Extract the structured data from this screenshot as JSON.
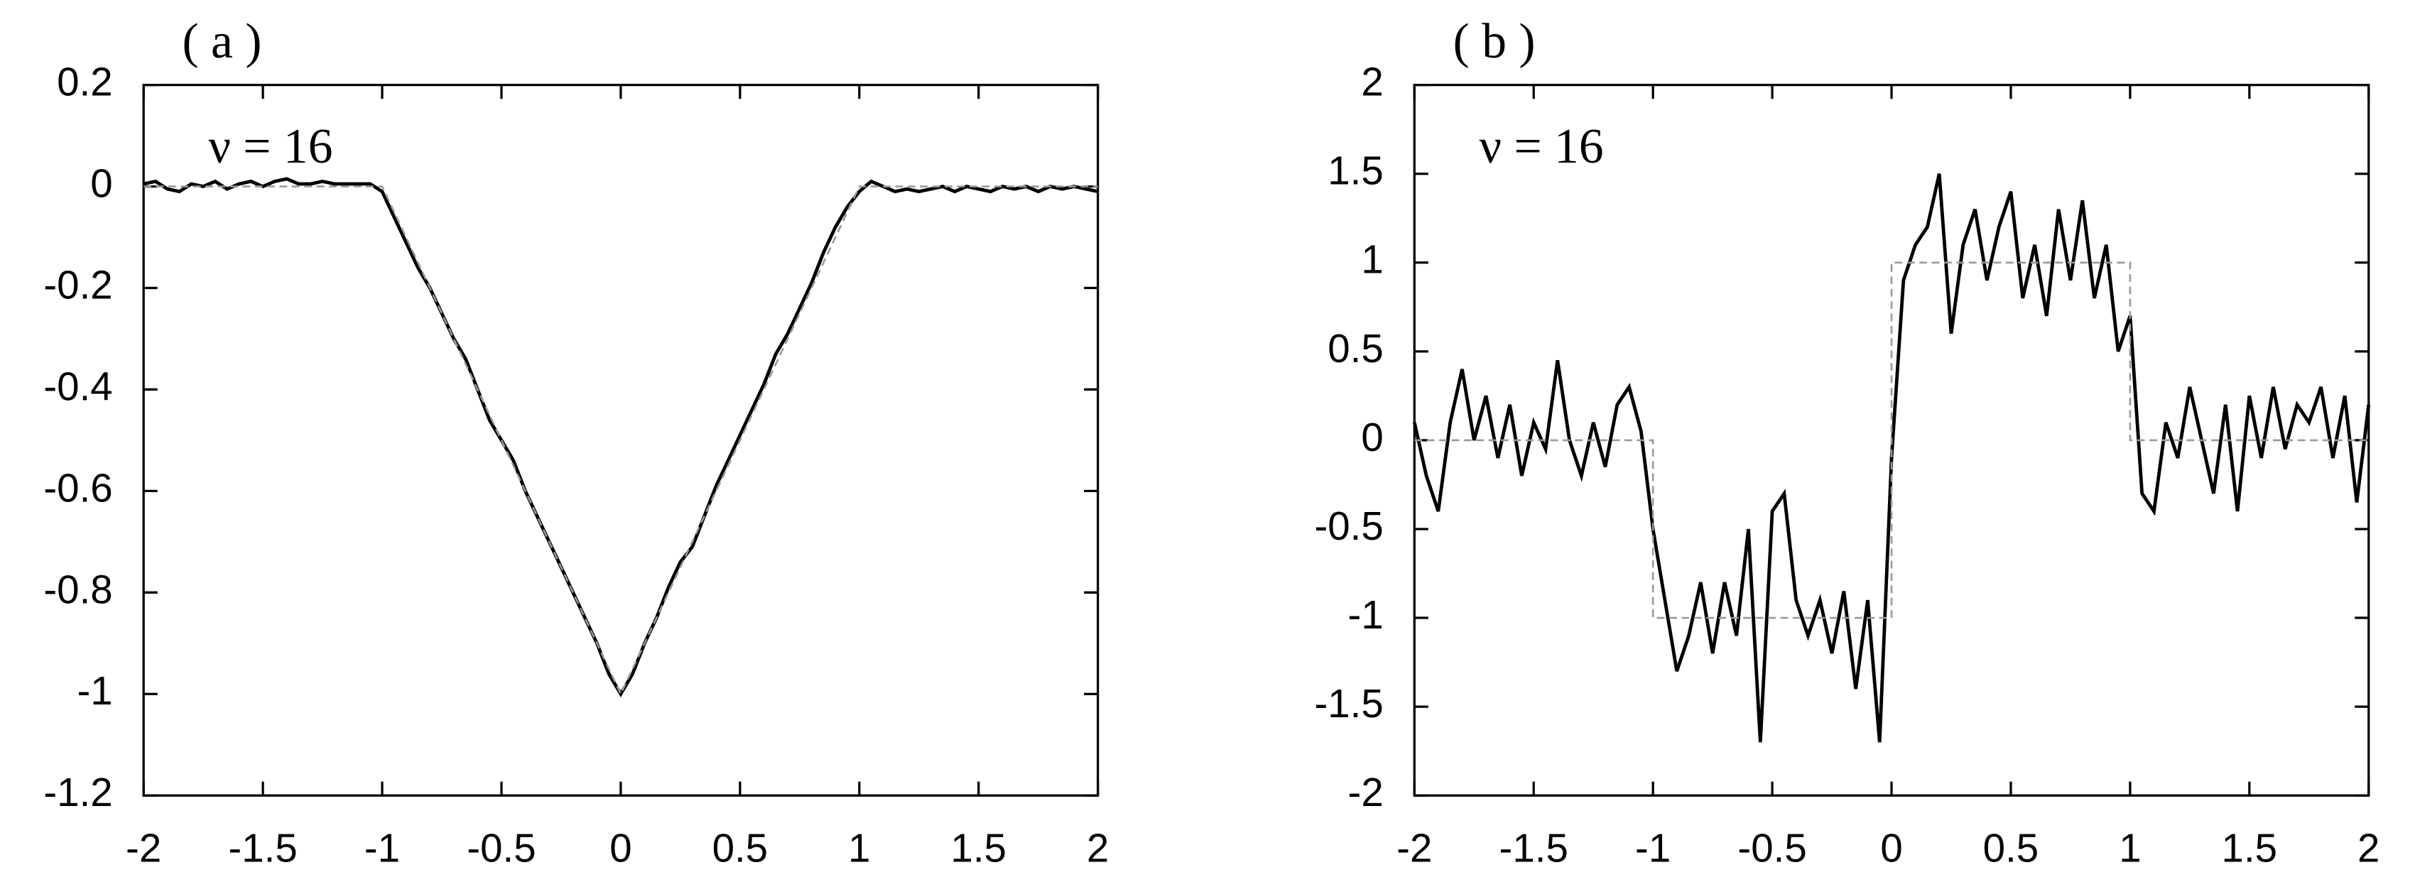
{
  "chart_data": [
    {
      "type": "line",
      "title": "( a )",
      "annotation": "ν = 16",
      "xlim": [
        -2,
        2
      ],
      "ylim": [
        -1.2,
        0.2
      ],
      "xticks": [
        -2,
        -1.5,
        -1,
        -0.5,
        0,
        0.5,
        1,
        1.5,
        2
      ],
      "yticks": [
        -1.2,
        -1,
        -0.8,
        -0.6,
        -0.4,
        -0.2,
        0,
        0.2
      ],
      "series": [
        {
          "color": "#000000",
          "dashed": false,
          "x": [
            -2,
            -1.95,
            -1.9,
            -1.85,
            -1.8,
            -1.75,
            -1.7,
            -1.65,
            -1.6,
            -1.55,
            -1.5,
            -1.45,
            -1.4,
            -1.35,
            -1.3,
            -1.25,
            -1.2,
            -1.15,
            -1.1,
            -1.05,
            -1,
            -0.95,
            -0.9,
            -0.85,
            -0.8,
            -0.75,
            -0.7,
            -0.65,
            -0.6,
            -0.55,
            -0.5,
            -0.45,
            -0.4,
            -0.35,
            -0.3,
            -0.25,
            -0.2,
            -0.15,
            -0.1,
            -0.05,
            0,
            0.05,
            0.1,
            0.15,
            0.2,
            0.25,
            0.3,
            0.35,
            0.4,
            0.45,
            0.5,
            0.55,
            0.6,
            0.65,
            0.7,
            0.75,
            0.8,
            0.85,
            0.9,
            0.95,
            1,
            1.05,
            1.1,
            1.15,
            1.2,
            1.25,
            1.3,
            1.35,
            1.4,
            1.45,
            1.5,
            1.55,
            1.6,
            1.65,
            1.7,
            1.75,
            1.8,
            1.85,
            1.9,
            1.95,
            2
          ],
          "values": [
            0.005,
            0.01,
            -0.005,
            -0.01,
            0.005,
            0,
            0.01,
            -0.005,
            0.005,
            0.01,
            0,
            0.01,
            0.015,
            0.005,
            0.005,
            0.01,
            0.005,
            0.005,
            0.005,
            0.005,
            -0.01,
            -0.06,
            -0.11,
            -0.16,
            -0.2,
            -0.25,
            -0.3,
            -0.34,
            -0.4,
            -0.46,
            -0.5,
            -0.54,
            -0.6,
            -0.65,
            -0.7,
            -0.75,
            -0.8,
            -0.85,
            -0.9,
            -0.96,
            -1,
            -0.96,
            -0.9,
            -0.85,
            -0.79,
            -0.74,
            -0.71,
            -0.65,
            -0.59,
            -0.54,
            -0.49,
            -0.44,
            -0.39,
            -0.33,
            -0.29,
            -0.24,
            -0.19,
            -0.13,
            -0.08,
            -0.04,
            -0.01,
            0.01,
            0,
            -0.01,
            -0.005,
            -0.01,
            -0.005,
            0,
            -0.01,
            0,
            -0.005,
            -0.01,
            0,
            -0.005,
            0,
            -0.01,
            0,
            -0.005,
            0,
            -0.005,
            -0.01
          ]
        },
        {
          "color": "#999999",
          "dashed": true,
          "x": [
            -2,
            -1,
            0,
            1,
            2
          ],
          "values": [
            0,
            0,
            -1,
            0,
            0
          ]
        }
      ]
    },
    {
      "type": "line",
      "title": "( b )",
      "annotation": "ν = 16",
      "xlim": [
        -2,
        2
      ],
      "ylim": [
        -2,
        2
      ],
      "xticks": [
        -2,
        -1.5,
        -1,
        -0.5,
        0,
        0.5,
        1,
        1.5,
        2
      ],
      "yticks": [
        -2,
        -1.5,
        -1,
        -0.5,
        0,
        0.5,
        1,
        1.5,
        2
      ],
      "series": [
        {
          "color": "#000000",
          "dashed": false,
          "x": [
            -2,
            -1.95,
            -1.9,
            -1.85,
            -1.8,
            -1.75,
            -1.7,
            -1.65,
            -1.6,
            -1.55,
            -1.5,
            -1.45,
            -1.4,
            -1.35,
            -1.3,
            -1.25,
            -1.2,
            -1.15,
            -1.1,
            -1.05,
            -1,
            -0.95,
            -0.9,
            -0.85,
            -0.8,
            -0.75,
            -0.7,
            -0.65,
            -0.6,
            -0.55,
            -0.5,
            -0.45,
            -0.4,
            -0.35,
            -0.3,
            -0.25,
            -0.2,
            -0.15,
            -0.1,
            -0.05,
            0,
            0.05,
            0.1,
            0.15,
            0.2,
            0.25,
            0.3,
            0.35,
            0.4,
            0.45,
            0.5,
            0.55,
            0.6,
            0.65,
            0.7,
            0.75,
            0.8,
            0.85,
            0.9,
            0.95,
            1,
            1.05,
            1.1,
            1.15,
            1.2,
            1.25,
            1.3,
            1.35,
            1.4,
            1.45,
            1.5,
            1.55,
            1.6,
            1.65,
            1.7,
            1.75,
            1.8,
            1.85,
            1.9,
            1.95,
            2
          ],
          "values": [
            0.1,
            -0.2,
            -0.4,
            0.1,
            0.4,
            0,
            0.25,
            -0.1,
            0.2,
            -0.2,
            0.1,
            -0.05,
            0.45,
            0,
            -0.2,
            0.1,
            -0.15,
            0.2,
            0.3,
            0.05,
            -0.5,
            -0.9,
            -1.3,
            -1.1,
            -0.8,
            -1.2,
            -0.8,
            -1.1,
            -0.5,
            -1.7,
            -0.4,
            -0.3,
            -0.9,
            -1.1,
            -0.9,
            -1.2,
            -0.85,
            -1.4,
            -0.9,
            -1.7,
            -0.1,
            0.9,
            1.1,
            1.2,
            1.5,
            0.6,
            1.1,
            1.3,
            0.9,
            1.2,
            1.4,
            0.8,
            1.1,
            0.7,
            1.3,
            0.9,
            1.35,
            0.8,
            1.1,
            0.5,
            0.7,
            -0.3,
            -0.4,
            0.1,
            -0.1,
            0.3,
            0,
            -0.3,
            0.2,
            -0.4,
            0.25,
            -0.1,
            0.3,
            -0.05,
            0.2,
            0.1,
            0.3,
            -0.1,
            0.25,
            -0.35,
            0.2
          ]
        },
        {
          "color": "#999999",
          "dashed": true,
          "x": [
            -2,
            -1,
            -1,
            0,
            0,
            1,
            1,
            2
          ],
          "values": [
            0,
            0,
            -1,
            -1,
            1,
            1,
            0,
            0
          ]
        }
      ]
    }
  ]
}
